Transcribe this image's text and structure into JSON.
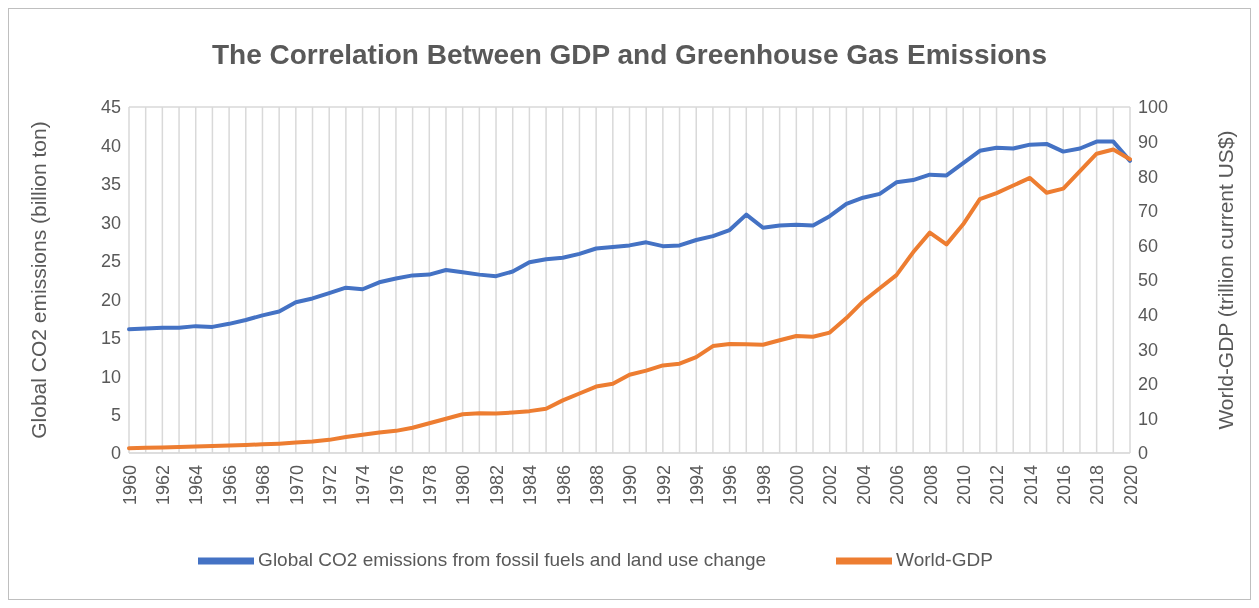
{
  "chart_data": {
    "type": "line",
    "title": "The Correlation Between GDP and Greenhouse Gas Emissions",
    "ylabel": "Global CO2 emissions (billion ton)",
    "y2label": "World-GDP (trillion current US$)",
    "categories": [
      "1960",
      null,
      "1962",
      null,
      "1964",
      null,
      "1966",
      null,
      "1968",
      null,
      "1970",
      null,
      "1972",
      null,
      "1974",
      null,
      "1976",
      null,
      "1978",
      null,
      "1980",
      null,
      "1982",
      null,
      "1984",
      null,
      "1986",
      null,
      "1988",
      null,
      "1990",
      null,
      "1992",
      null,
      "1994",
      null,
      "1996",
      null,
      "1998",
      null,
      "2000",
      null,
      "2002",
      null,
      "2004",
      null,
      "2006",
      null,
      "2008",
      null,
      "2010",
      null,
      "2012",
      null,
      "2014",
      null,
      "2016",
      null,
      "2018",
      null,
      "2020"
    ],
    "series": [
      {
        "name": "Global CO2 emissions from fossil fuels and land use change",
        "color": "#4472c4",
        "values": [
          16.1,
          16.2,
          16.3,
          16.3,
          16.5,
          16.4,
          16.8,
          17.3,
          17.9,
          18.4,
          19.6,
          20.1,
          20.8,
          21.5,
          21.3,
          22.2,
          22.7,
          23.1,
          23.2,
          23.8,
          23.5,
          23.2,
          23.0,
          23.6,
          24.8,
          25.2,
          25.4,
          25.9,
          26.6,
          26.8,
          27.0,
          27.4,
          26.9,
          27.0,
          27.7,
          28.2,
          29.0,
          31.0,
          29.3,
          29.6,
          29.7,
          29.6,
          30.8,
          32.4,
          33.2,
          33.7,
          35.2,
          35.5,
          36.2,
          36.1,
          37.7,
          39.3,
          39.7,
          39.6,
          40.1,
          40.2,
          39.2,
          39.6,
          40.5,
          40.5,
          38.0
        ]
      },
      {
        "name": "World-GDP",
        "color": "#ed7d31",
        "axis": "y2",
        "values": [
          1.4,
          1.5,
          1.6,
          1.7,
          1.9,
          2.0,
          2.2,
          2.3,
          2.5,
          2.7,
          3.0,
          3.3,
          3.8,
          4.6,
          5.3,
          5.9,
          6.4,
          7.3,
          8.6,
          9.9,
          11.2,
          11.5,
          11.4,
          11.7,
          12.1,
          12.8,
          15.2,
          17.2,
          19.2,
          20.0,
          22.6,
          23.8,
          25.3,
          25.8,
          27.7,
          30.9,
          31.5,
          31.4,
          31.3,
          32.6,
          33.8,
          33.6,
          34.8,
          39.0,
          43.8,
          47.6,
          51.4,
          58.0,
          63.7,
          60.3,
          66.1,
          73.4,
          75.1,
          77.3,
          79.5,
          75.2,
          76.4,
          81.5,
          86.5,
          87.7,
          84.9
        ]
      }
    ],
    "ylim": [
      0,
      45
    ],
    "yticks": [
      0,
      5,
      10,
      15,
      20,
      25,
      30,
      35,
      40,
      45
    ],
    "y2lim": [
      0,
      100
    ],
    "y2ticks": [
      0,
      10,
      20,
      30,
      40,
      50,
      60,
      70,
      80,
      90,
      100
    ],
    "grid": true,
    "legend": "bottom",
    "marker": "none",
    "line_style": "solid"
  }
}
